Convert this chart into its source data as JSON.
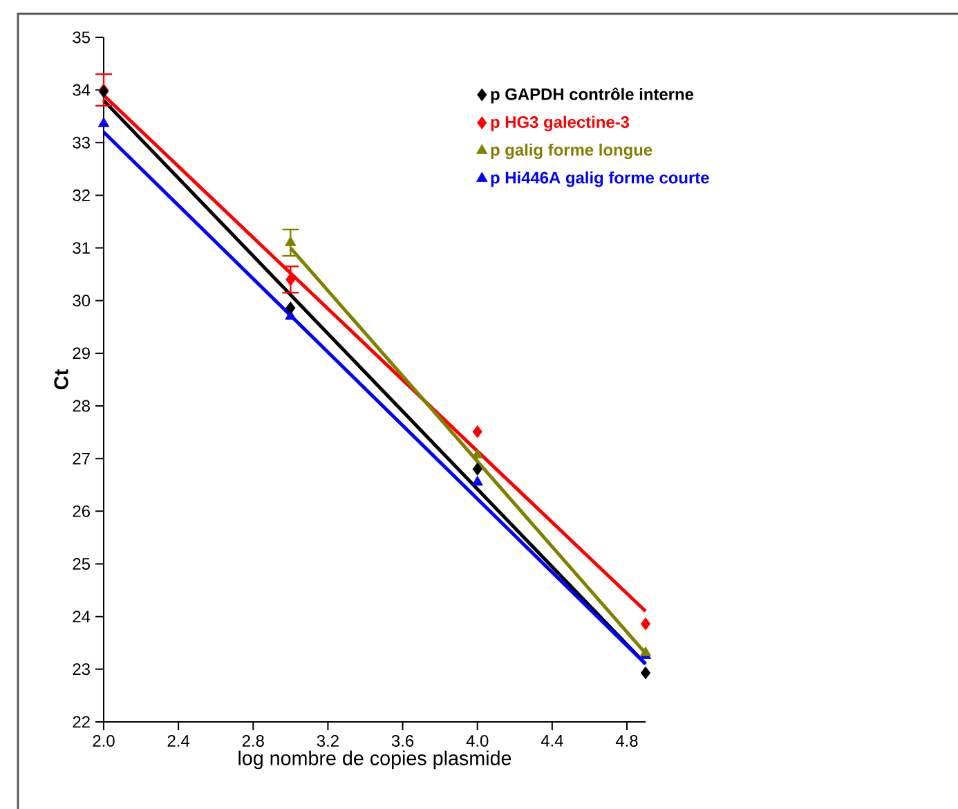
{
  "chart_data": {
    "type": "scatter",
    "xlabel": "log nombre de copies plasmide",
    "ylabel": "Ct",
    "xlim": [
      2.0,
      4.9
    ],
    "ylim": [
      22,
      35
    ],
    "xticks": [
      {
        "value": 2.0,
        "label": "2.0"
      },
      {
        "value": 2.4,
        "label": "2.4"
      },
      {
        "value": 2.8,
        "label": "2.8"
      },
      {
        "value": 3.2,
        "label": "3.2"
      },
      {
        "value": 3.6,
        "label": "3.6"
      },
      {
        "value": 4.0,
        "label": "4.0"
      },
      {
        "value": 4.4,
        "label": "4.4"
      },
      {
        "value": 4.8,
        "label": "4.8"
      }
    ],
    "yticks": [
      22,
      23,
      24,
      25,
      26,
      27,
      28,
      29,
      30,
      31,
      32,
      33,
      34,
      35
    ],
    "legend": "top right",
    "grid": false,
    "series": [
      {
        "name": "p GAPDH contrôle interne",
        "color": "#000000",
        "marker": "diamond",
        "x": [
          2,
          3,
          4,
          4.9
        ],
        "values": [
          33.97,
          29.86,
          26.8,
          22.93
        ]
      },
      {
        "name": "p HG3 galectine-3",
        "color": "#ff0000",
        "marker": "diamond",
        "x": [
          2,
          3,
          4,
          4.9
        ],
        "values": [
          34.0,
          30.4,
          27.51,
          23.86
        ],
        "errors": [
          0.3,
          0.25,
          null,
          null
        ]
      },
      {
        "name": "p galig forme longue",
        "color": "#808000",
        "marker": "triangle",
        "x": [
          3,
          4,
          4.9
        ],
        "values": [
          31.1,
          27.07,
          23.31
        ],
        "errors": [
          0.25,
          null,
          null
        ]
      },
      {
        "name": "p Hi446A galig forme courte",
        "color": "#0000ff",
        "marker": "triangle",
        "x": [
          2,
          3,
          4,
          4.9
        ],
        "values": [
          33.36,
          29.7,
          26.55,
          23.26
        ]
      },
      {
        "type": "line",
        "color": "#000000",
        "marker": "none",
        "x": [
          2,
          4.9
        ],
        "values": [
          33.8,
          23.1
        ]
      },
      {
        "type": "line",
        "color": "#ff0000",
        "marker": "none",
        "x": [
          2,
          4.9
        ],
        "values": [
          33.9,
          24.1
        ]
      },
      {
        "type": "line",
        "color": "#808000",
        "marker": "none",
        "x": [
          3,
          4.9
        ],
        "values": [
          31.0,
          23.3
        ]
      },
      {
        "type": "line",
        "color": "#0000ff",
        "marker": "none",
        "x": [
          2,
          4.9
        ],
        "values": [
          33.2,
          23.1
        ]
      }
    ]
  }
}
